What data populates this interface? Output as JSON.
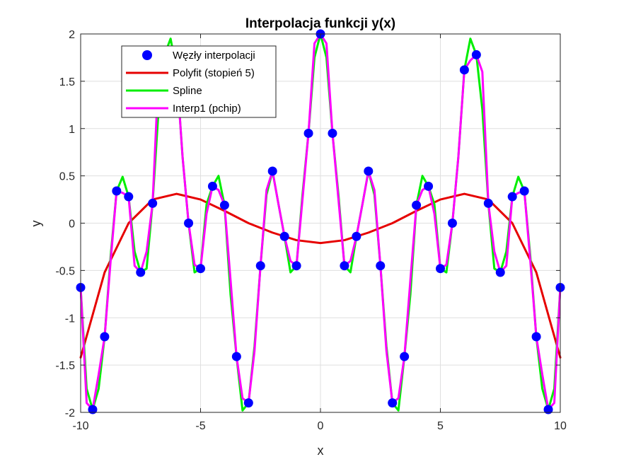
{
  "chart_data": {
    "type": "line",
    "title": "Interpolacja funkcji y(x)",
    "xlabel": "x",
    "ylabel": "y",
    "xlim": [
      -10,
      10
    ],
    "ylim": [
      -2,
      2
    ],
    "grid": true,
    "legend_position": "top-left",
    "x_ticks": [
      -10,
      -5,
      0,
      5,
      10
    ],
    "x_tick_labels": [
      "-10",
      "-5",
      "0",
      "5",
      "10"
    ],
    "y_ticks": [
      -2,
      -1.5,
      -1,
      -0.5,
      0,
      0.5,
      1,
      1.5,
      2
    ],
    "y_tick_labels": [
      "-2",
      "-1.5",
      "-1",
      "-0.5",
      "0",
      "0.5",
      "1",
      "1.5",
      "2"
    ],
    "nodes": {
      "name": "Węzły interpolacji",
      "color": "#0000ff",
      "x": [
        -10,
        -9.5,
        -9,
        -8.5,
        -8,
        -7.5,
        -7,
        -6.5,
        -6,
        -5.5,
        -5,
        -4.5,
        -4,
        -3.5,
        -3,
        -2.5,
        -2,
        -1.5,
        -1,
        -0.5,
        0,
        0.5,
        1,
        1.5,
        2,
        2.5,
        3,
        3.5,
        4,
        4.5,
        5,
        5.5,
        6,
        6.5,
        7,
        7.5,
        8,
        8.5,
        9,
        9.5,
        10
      ],
      "y": [
        -0.68,
        -1.97,
        -1.2,
        0.34,
        0.28,
        -0.52,
        0.21,
        1.78,
        1.62,
        0.0,
        -0.48,
        0.39,
        0.19,
        -1.41,
        -1.9,
        -0.45,
        0.55,
        -0.14,
        -0.45,
        0.95,
        2.0,
        0.95,
        -0.45,
        -0.14,
        0.55,
        -0.45,
        -1.9,
        -1.41,
        0.19,
        0.39,
        -0.48,
        0.0,
        1.62,
        1.78,
        0.21,
        -0.52,
        0.28,
        0.34,
        -1.2,
        -1.97,
        -0.68
      ]
    },
    "series": [
      {
        "name": "Polyfit (stopień 5)",
        "color": "#e60000",
        "x": [
          -10,
          -9,
          -8,
          -7,
          -6,
          -5,
          -4,
          -3,
          -2,
          -1,
          0,
          1,
          2,
          3,
          4,
          5,
          6,
          7,
          8,
          9,
          10
        ],
        "y": [
          -1.42,
          -0.52,
          0.0,
          0.25,
          0.31,
          0.25,
          0.13,
          0.0,
          -0.1,
          -0.18,
          -0.21,
          -0.18,
          -0.1,
          0.0,
          0.13,
          0.25,
          0.31,
          0.25,
          0.0,
          -0.52,
          -1.42
        ]
      },
      {
        "name": "Spline",
        "color": "#00ee00",
        "x": [
          -10,
          -9.75,
          -9.5,
          -9.25,
          -9,
          -8.75,
          -8.5,
          -8.25,
          -8,
          -7.75,
          -7.5,
          -7.25,
          -7,
          -6.75,
          -6.5,
          -6.25,
          -6,
          -5.75,
          -5.5,
          -5.25,
          -5,
          -4.75,
          -4.5,
          -4.25,
          -4,
          -3.75,
          -3.5,
          -3.25,
          -3,
          -2.75,
          -2.5,
          -2.25,
          -2,
          -1.75,
          -1.5,
          -1.25,
          -1,
          -0.75,
          -0.5,
          -0.25,
          0,
          0.25,
          0.5,
          0.75,
          1,
          1.25,
          1.5,
          1.75,
          2,
          2.25,
          2.5,
          2.75,
          3,
          3.25,
          3.5,
          3.75,
          4,
          4.25,
          4.5,
          4.75,
          5,
          5.25,
          5.5,
          5.75,
          6,
          6.25,
          6.5,
          6.75,
          7,
          7.25,
          7.5,
          7.75,
          8,
          8.25,
          8.5,
          8.75,
          9,
          9.25,
          9.5,
          9.75,
          10
        ],
        "y": [
          -0.68,
          -1.75,
          -1.97,
          -1.75,
          -1.2,
          -0.35,
          0.34,
          0.49,
          0.28,
          -0.3,
          -0.52,
          -0.48,
          0.21,
          1.2,
          1.78,
          1.95,
          1.62,
          0.7,
          0.0,
          -0.52,
          -0.48,
          0.2,
          0.39,
          0.5,
          0.19,
          -0.75,
          -1.41,
          -1.98,
          -1.9,
          -1.3,
          -0.45,
          0.3,
          0.55,
          0.2,
          -0.14,
          -0.52,
          -0.45,
          0.3,
          0.95,
          1.75,
          2.0,
          1.75,
          0.95,
          0.3,
          -0.45,
          -0.52,
          -0.14,
          0.2,
          0.55,
          0.3,
          -0.45,
          -1.3,
          -1.9,
          -1.98,
          -1.41,
          -0.75,
          0.19,
          0.5,
          0.39,
          0.2,
          -0.48,
          -0.52,
          0.0,
          0.7,
          1.62,
          1.95,
          1.78,
          1.2,
          0.21,
          -0.48,
          -0.52,
          -0.3,
          0.28,
          0.49,
          0.34,
          -0.35,
          -1.2,
          -1.75,
          -1.97,
          -1.75,
          -0.68
        ]
      },
      {
        "name": "Interp1 (pchip)",
        "color": "#ff00ff",
        "x": [
          -10,
          -9.75,
          -9.5,
          -9.25,
          -9,
          -8.75,
          -8.5,
          -8.25,
          -8,
          -7.75,
          -7.5,
          -7.25,
          -7,
          -6.75,
          -6.5,
          -6.25,
          -6,
          -5.75,
          -5.5,
          -5.25,
          -5,
          -4.75,
          -4.5,
          -4.25,
          -4,
          -3.75,
          -3.5,
          -3.25,
          -3,
          -2.75,
          -2.5,
          -2.25,
          -2,
          -1.75,
          -1.5,
          -1.25,
          -1,
          -0.75,
          -0.5,
          -0.25,
          0,
          0.25,
          0.5,
          0.75,
          1,
          1.25,
          1.5,
          1.75,
          2,
          2.25,
          2.5,
          2.75,
          3,
          3.25,
          3.5,
          3.75,
          4,
          4.25,
          4.5,
          4.75,
          5,
          5.25,
          5.5,
          5.75,
          6,
          6.25,
          6.5,
          6.75,
          7,
          7.25,
          7.5,
          7.75,
          8,
          8.25,
          8.5,
          8.75,
          9,
          9.25,
          9.5,
          9.75,
          10
        ],
        "y": [
          -0.68,
          -1.9,
          -1.97,
          -1.6,
          -1.2,
          -0.4,
          0.34,
          0.32,
          0.28,
          -0.45,
          -0.52,
          -0.3,
          0.21,
          1.6,
          1.78,
          1.72,
          1.62,
          0.7,
          0.0,
          -0.44,
          -0.48,
          0.1,
          0.39,
          0.35,
          0.19,
          -0.6,
          -1.41,
          -1.85,
          -1.9,
          -1.35,
          -0.45,
          0.35,
          0.55,
          0.2,
          -0.14,
          -0.4,
          -0.45,
          0.25,
          0.95,
          1.9,
          2.0,
          1.9,
          0.95,
          0.25,
          -0.45,
          -0.4,
          -0.14,
          0.2,
          0.55,
          0.35,
          -0.45,
          -1.35,
          -1.9,
          -1.85,
          -1.41,
          -0.6,
          0.19,
          0.35,
          0.39,
          0.1,
          -0.48,
          -0.44,
          0.0,
          0.7,
          1.62,
          1.72,
          1.78,
          1.6,
          0.21,
          -0.3,
          -0.52,
          -0.45,
          0.28,
          0.32,
          0.34,
          -0.4,
          -1.2,
          -1.6,
          -1.97,
          -1.9,
          -0.68
        ]
      }
    ]
  }
}
